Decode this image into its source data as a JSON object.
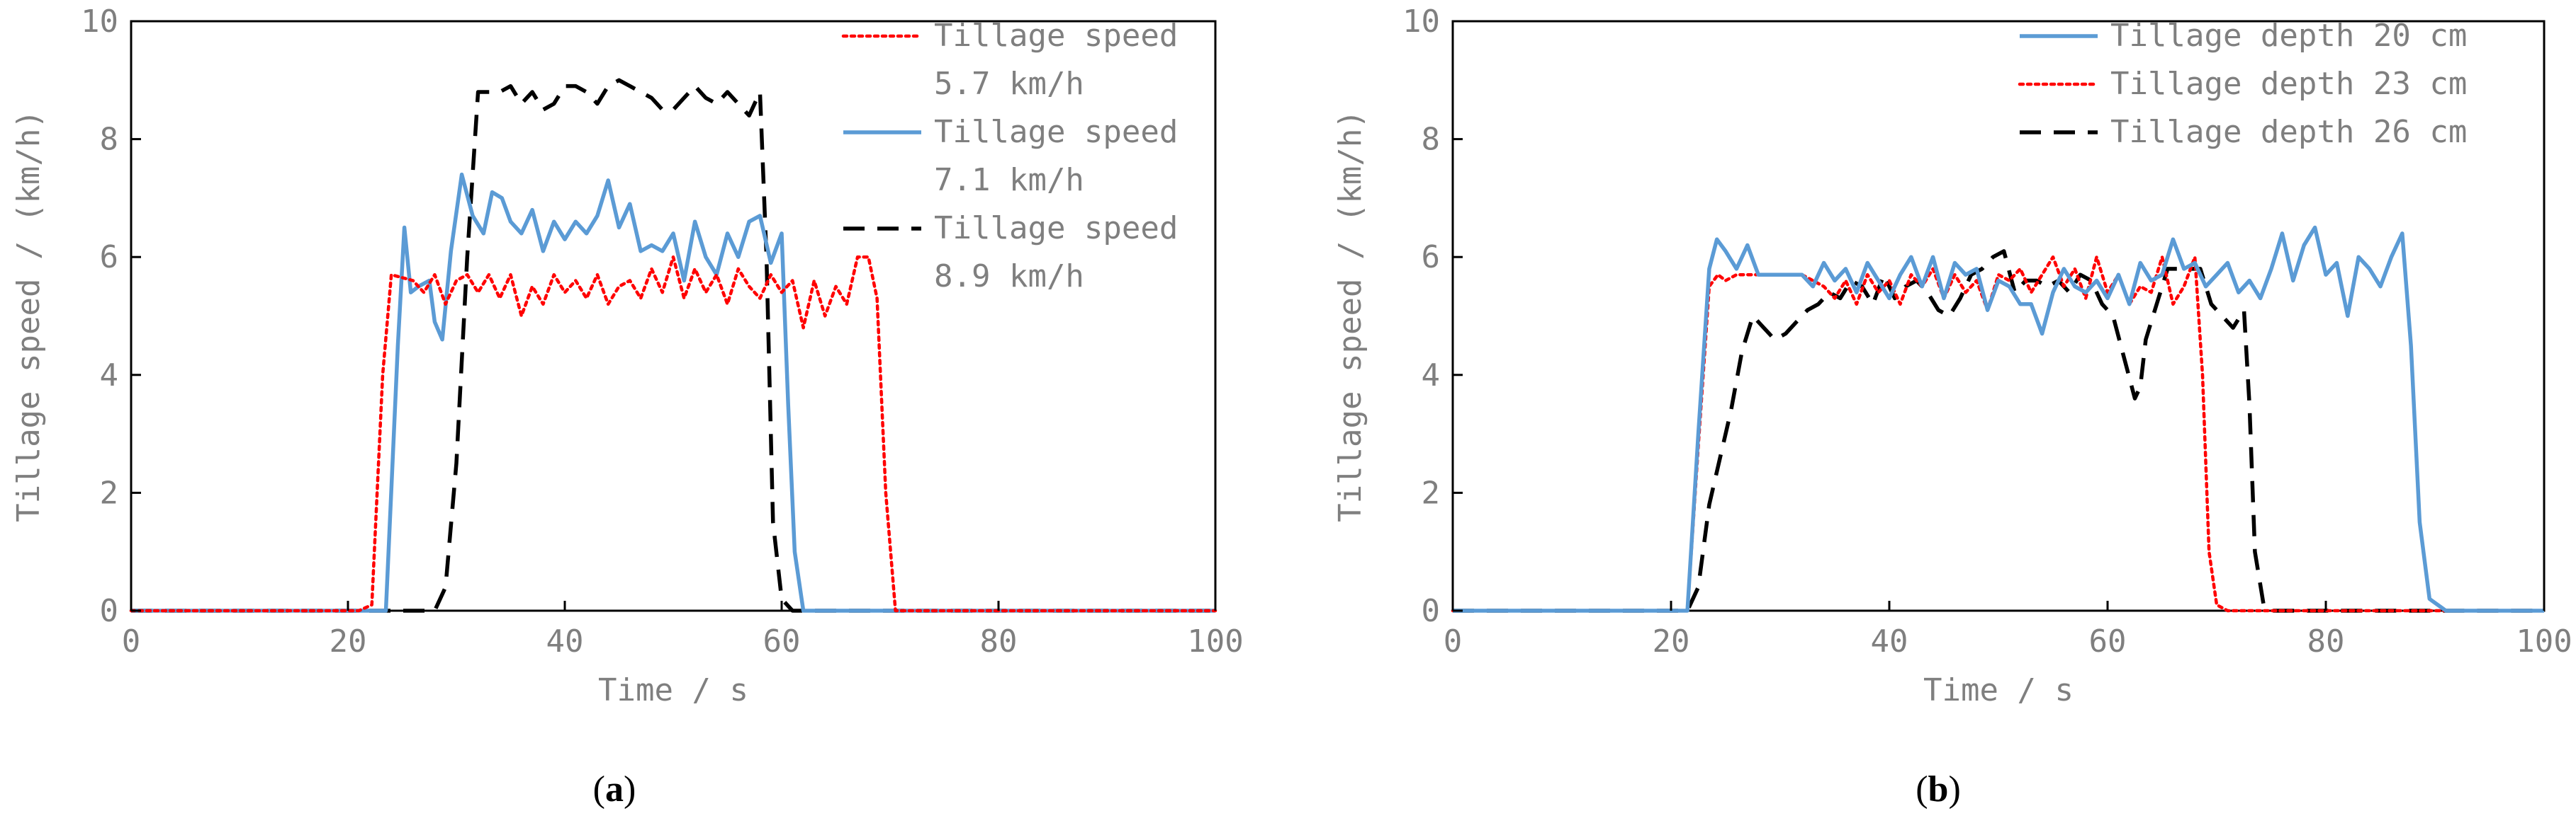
{
  "chart_data": [
    {
      "type": "line",
      "panel_label": "a",
      "xlabel": "Time / s",
      "ylabel": "Tillage speed / (km/h)",
      "xlim": [
        0,
        100
      ],
      "ylim": [
        0,
        10
      ],
      "xticks": [
        0,
        20,
        40,
        60,
        80,
        100
      ],
      "yticks": [
        0,
        2,
        4,
        6,
        8,
        10
      ],
      "legend": "top-right",
      "series": [
        {
          "name": "Tillage speed 5.7 km/h",
          "legend_lines": [
            "Tillage speed",
            "5.7 km/h"
          ],
          "color": "#ff0000",
          "dash": "dotted",
          "x": [
            0,
            21,
            22.2,
            23.2,
            24,
            26,
            27,
            28,
            29,
            30,
            31,
            32,
            33,
            34,
            35,
            36,
            37,
            38,
            39,
            40,
            41,
            42,
            43,
            44,
            45,
            46,
            47,
            48,
            49,
            50,
            51,
            52,
            53,
            54,
            55,
            56,
            57,
            58,
            59,
            60,
            61,
            62,
            63,
            64,
            65,
            66,
            67,
            68,
            68.8,
            69.6,
            70.5,
            80,
            88,
            91,
            100
          ],
          "y": [
            0,
            0,
            0.1,
            4.0,
            5.7,
            5.6,
            5.4,
            5.7,
            5.2,
            5.6,
            5.7,
            5.4,
            5.7,
            5.3,
            5.7,
            5.0,
            5.5,
            5.2,
            5.7,
            5.4,
            5.6,
            5.3,
            5.7,
            5.2,
            5.5,
            5.6,
            5.3,
            5.8,
            5.4,
            6.0,
            5.3,
            5.8,
            5.4,
            5.7,
            5.2,
            5.8,
            5.5,
            5.3,
            5.7,
            5.4,
            5.6,
            4.8,
            5.6,
            5.0,
            5.5,
            5.2,
            6.0,
            6.0,
            5.3,
            2.0,
            0,
            0,
            0,
            0,
            0
          ]
        },
        {
          "name": "Tillage speed 7.1 km/h",
          "legend_lines": [
            "Tillage speed",
            "7.1 km/h"
          ],
          "color": "#5b9bd5",
          "dash": "solid",
          "x": [
            0,
            23.5,
            24.6,
            25.2,
            25.8,
            26.5,
            27.5,
            28,
            28.7,
            29.5,
            30.5,
            31.5,
            32.5,
            33.3,
            34.2,
            35,
            36,
            37,
            38,
            39,
            40,
            41,
            42,
            43,
            44,
            45,
            46,
            47,
            48,
            49,
            50,
            51,
            52,
            53,
            54,
            55,
            56,
            57,
            58,
            59,
            60,
            60.6,
            61.2,
            62,
            70,
            100
          ],
          "y": [
            0,
            0,
            4.5,
            6.5,
            5.4,
            5.5,
            5.6,
            4.9,
            4.6,
            6.1,
            7.4,
            6.7,
            6.4,
            7.1,
            7.0,
            6.6,
            6.4,
            6.8,
            6.1,
            6.6,
            6.3,
            6.6,
            6.4,
            6.7,
            7.3,
            6.5,
            6.9,
            6.1,
            6.2,
            6.1,
            6.4,
            5.6,
            6.6,
            6.0,
            5.7,
            6.4,
            6.0,
            6.6,
            6.7,
            5.9,
            6.4,
            3.5,
            1.0,
            0,
            0,
            0
          ]
        },
        {
          "name": "Tillage speed 8.9 km/h",
          "legend_lines": [
            "Tillage speed",
            "8.9 km/h"
          ],
          "color": "#000000",
          "dash": "dashed",
          "x": [
            0,
            28,
            29,
            30,
            31,
            32,
            33,
            34,
            35,
            36,
            37,
            38,
            39,
            40,
            41,
            42,
            43,
            44,
            45,
            46,
            47,
            48,
            49,
            50,
            51,
            52,
            53,
            54,
            55,
            56,
            57,
            58,
            58.6,
            59.2,
            60,
            61,
            100
          ],
          "y": [
            0,
            0,
            0.4,
            2.5,
            6.0,
            8.8,
            8.8,
            8.8,
            8.9,
            8.6,
            8.8,
            8.5,
            8.6,
            8.9,
            8.9,
            8.8,
            8.6,
            8.9,
            9.0,
            8.9,
            8.8,
            8.7,
            8.5,
            8.5,
            8.7,
            8.9,
            8.7,
            8.6,
            8.8,
            8.6,
            8.4,
            8.8,
            6.0,
            1.5,
            0.2,
            0,
            0
          ]
        }
      ]
    },
    {
      "type": "line",
      "panel_label": "b",
      "xlabel": "Time / s",
      "ylabel": "Tillage speed / (km/h)",
      "xlim": [
        0,
        100
      ],
      "ylim": [
        0,
        10
      ],
      "xticks": [
        0,
        20,
        40,
        60,
        80,
        100
      ],
      "yticks": [
        0,
        2,
        4,
        6,
        8,
        10
      ],
      "legend": "top-right",
      "series": [
        {
          "name": "Tillage depth 20 cm",
          "legend_lines": [
            "Tillage depth 20 cm"
          ],
          "color": "#5b9bd5",
          "dash": "solid",
          "x": [
            0,
            21.5,
            22.5,
            23.5,
            24.2,
            25,
            26,
            27,
            28,
            30,
            32,
            33,
            34,
            35,
            36,
            37,
            38,
            39,
            40,
            41,
            42,
            43,
            44,
            45,
            46,
            47,
            48,
            49,
            50,
            51,
            52,
            53,
            54,
            55,
            56,
            57,
            58,
            59,
            60,
            61,
            62,
            63,
            64,
            65,
            66,
            67,
            68,
            69,
            70,
            71,
            72,
            73,
            74,
            75,
            76,
            77,
            78,
            79,
            80,
            81,
            82,
            83,
            84,
            85,
            86,
            87,
            87.8,
            88.6,
            89.5,
            91,
            100
          ],
          "y": [
            0,
            0,
            3.0,
            5.8,
            6.3,
            6.1,
            5.8,
            6.2,
            5.7,
            5.7,
            5.7,
            5.5,
            5.9,
            5.6,
            5.8,
            5.4,
            5.9,
            5.6,
            5.3,
            5.7,
            6.0,
            5.5,
            6.0,
            5.3,
            5.9,
            5.7,
            5.8,
            5.1,
            5.6,
            5.5,
            5.2,
            5.2,
            4.7,
            5.4,
            5.8,
            5.5,
            5.4,
            5.6,
            5.3,
            5.7,
            5.2,
            5.9,
            5.6,
            5.7,
            6.3,
            5.8,
            5.9,
            5.5,
            5.7,
            5.9,
            5.4,
            5.6,
            5.3,
            5.8,
            6.4,
            5.6,
            6.2,
            6.5,
            5.7,
            5.9,
            5.0,
            6.0,
            5.8,
            5.5,
            6.0,
            6.4,
            4.5,
            1.5,
            0.2,
            0,
            0
          ]
        },
        {
          "name": "Tillage depth 23 cm",
          "legend_lines": [
            "Tillage depth 23 cm"
          ],
          "color": "#ff0000",
          "dash": "dotted",
          "x": [
            0,
            21.5,
            22.5,
            23.5,
            24.3,
            25,
            26,
            28,
            30,
            32,
            34,
            35,
            36,
            37,
            38,
            39,
            40,
            41,
            42,
            43,
            44,
            45,
            46,
            47,
            48,
            49,
            50,
            51,
            52,
            53,
            54,
            55,
            56,
            57,
            58,
            59,
            60,
            61,
            62,
            63,
            64,
            65,
            66,
            67,
            68,
            68.7,
            69.3,
            70,
            71,
            100
          ],
          "y": [
            0,
            0,
            2.8,
            5.5,
            5.7,
            5.6,
            5.7,
            5.7,
            5.7,
            5.7,
            5.5,
            5.3,
            5.6,
            5.2,
            5.7,
            5.4,
            5.6,
            5.2,
            5.7,
            5.5,
            5.8,
            5.3,
            5.7,
            5.4,
            5.6,
            5.1,
            5.7,
            5.6,
            5.8,
            5.4,
            5.7,
            6.0,
            5.5,
            5.8,
            5.3,
            6.0,
            5.4,
            5.7,
            5.2,
            5.5,
            5.4,
            6.0,
            5.2,
            5.5,
            6.0,
            4.0,
            1.0,
            0.1,
            0,
            0
          ]
        },
        {
          "name": "Tillage depth 26 cm",
          "legend_lines": [
            "Tillage depth 26 cm"
          ],
          "color": "#000000",
          "dash": "dashed",
          "x": [
            0,
            21.5,
            22.5,
            23.5,
            24.5,
            25.5,
            26.5,
            27.5,
            28.5,
            29.5,
            30.5,
            31.5,
            32.5,
            33.5,
            34.5,
            35.5,
            36.5,
            37.5,
            38.5,
            39.5,
            40.5,
            41.5,
            42.5,
            43.5,
            44.5,
            45.5,
            46.5,
            47.5,
            48.5,
            49.5,
            50.5,
            51.5,
            52.5,
            53.5,
            54.5,
            55.5,
            56.5,
            57.5,
            58.5,
            59.5,
            60.5,
            61.5,
            62.5,
            63,
            63.5,
            64.5,
            65.5,
            66.5,
            67.5,
            68.5,
            69.5,
            70.5,
            71.5,
            72.5,
            73,
            73.5,
            74.3,
            75,
            100
          ],
          "y": [
            0,
            0,
            0.4,
            1.8,
            2.6,
            3.4,
            4.4,
            5.0,
            4.8,
            4.6,
            4.7,
            4.9,
            5.1,
            5.2,
            5.4,
            5.3,
            5.6,
            5.5,
            5.2,
            5.7,
            5.3,
            5.5,
            5.6,
            5.4,
            5.1,
            5.0,
            5.3,
            5.7,
            5.8,
            6.0,
            6.1,
            5.4,
            5.6,
            5.6,
            5.5,
            5.6,
            5.4,
            5.7,
            5.6,
            5.2,
            5.0,
            4.3,
            3.6,
            3.8,
            4.6,
            5.2,
            5.8,
            5.8,
            5.8,
            5.8,
            5.2,
            5.0,
            4.8,
            5.1,
            3.5,
            1.0,
            0.1,
            0,
            0
          ]
        }
      ]
    }
  ]
}
